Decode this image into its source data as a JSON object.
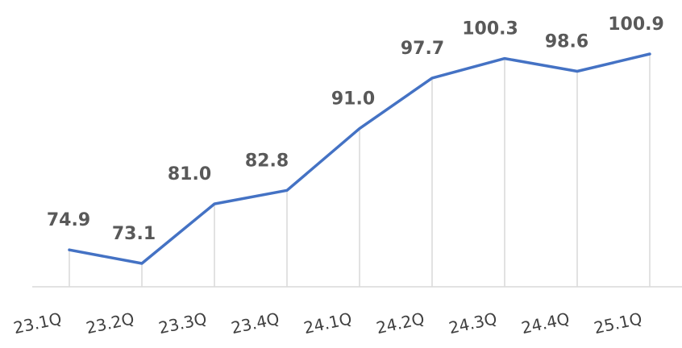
{
  "chart_data": {
    "type": "line",
    "title": "",
    "xlabel": "",
    "ylabel": "",
    "categories": [
      "23.1Q",
      "23.2Q",
      "23.3Q",
      "23.4Q",
      "24.1Q",
      "24.2Q",
      "24.3Q",
      "24.4Q",
      "25.1Q"
    ],
    "series": [
      {
        "values": [
          74.9,
          73.1,
          81.0,
          82.8,
          91.0,
          97.7,
          100.3,
          98.6,
          100.9
        ]
      }
    ],
    "data_labels": [
      "74.9",
      "73.1",
      "81.0",
      "82.8",
      "91.0",
      "97.7",
      "100.3",
      "98.6",
      "100.9"
    ],
    "ylim": [
      70,
      103
    ],
    "line_color": "#4472C4",
    "grid": "vertical",
    "legend": "none"
  }
}
